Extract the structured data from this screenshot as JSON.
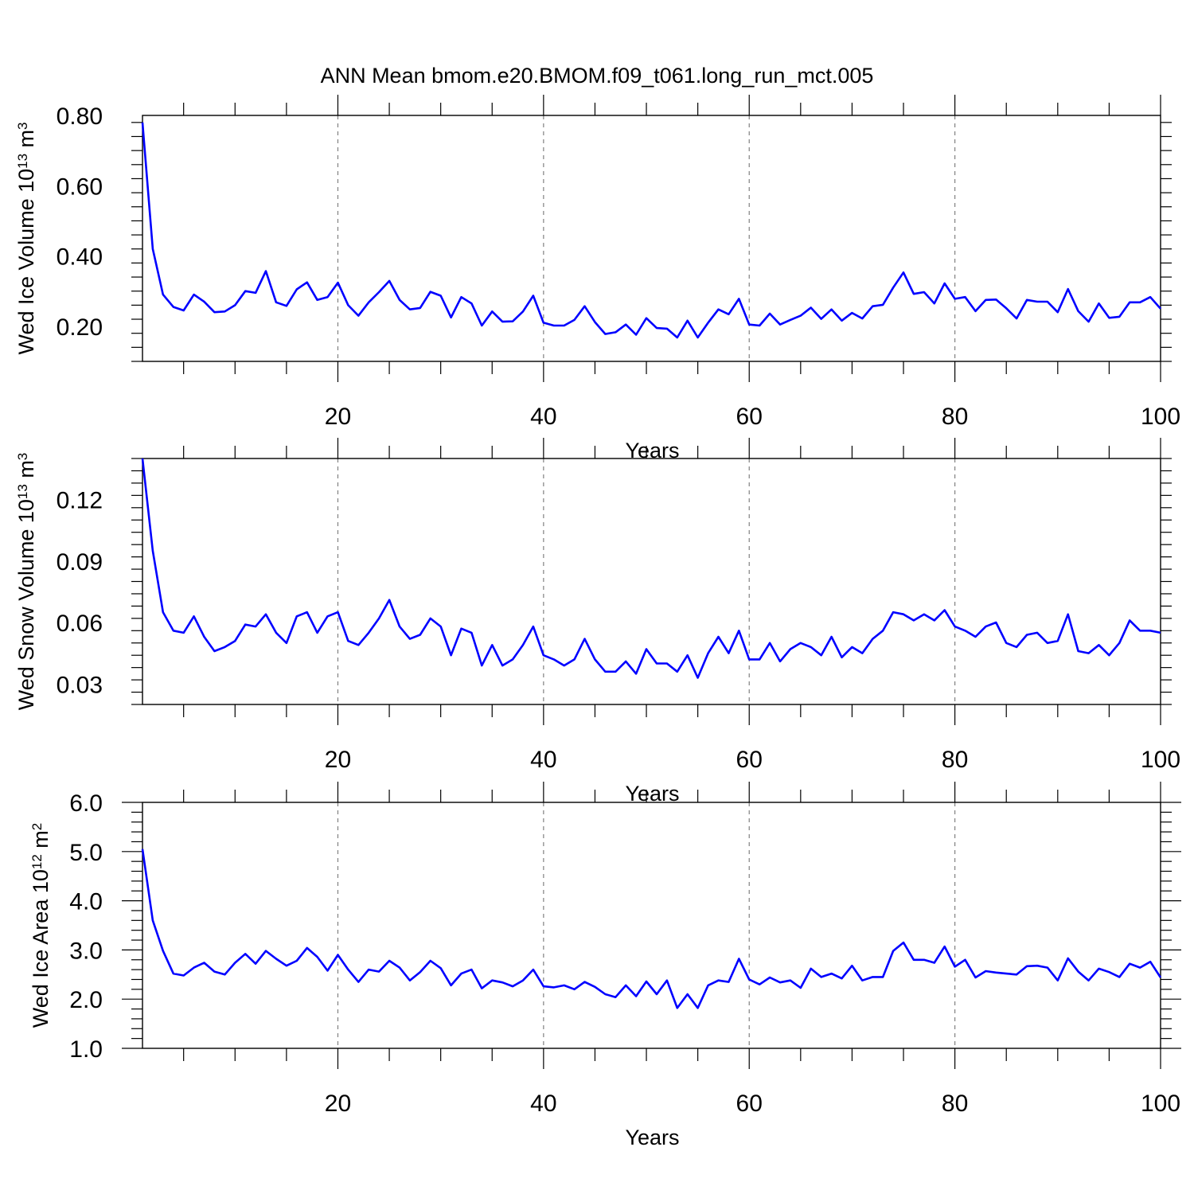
{
  "title": "ANN Mean bmom.e20.BMOM.f09_t061.long_run_mct.005",
  "colors": {
    "line": "#0000ff",
    "axis": "#000000",
    "grid": "#808080"
  },
  "chart_data": [
    {
      "type": "line",
      "ylabel": "Wed Ice Volume 10",
      "ylabel_exp": "13",
      "ylabel_unit": " m",
      "ylabel_unit_exp": "3",
      "xlabel": "Years",
      "xlim": [
        1,
        100
      ],
      "ylim": [
        0.1,
        0.8
      ],
      "yticks": [
        0.2,
        0.4,
        0.6,
        0.8
      ],
      "ytick_labels": [
        "0.20",
        "0.40",
        "0.60",
        "0.80"
      ],
      "xticks": [
        20,
        40,
        60,
        80,
        100
      ],
      "xtick_labels": [
        "20",
        "40",
        "60",
        "80",
        "100"
      ],
      "grid": "vertical dashed at major x ticks",
      "series": [
        {
          "values": [
            0.78,
            0.42,
            0.29,
            0.255,
            0.245,
            0.29,
            0.27,
            0.24,
            0.242,
            0.26,
            0.3,
            0.295,
            0.357,
            0.268,
            0.258,
            0.305,
            0.325,
            0.275,
            0.283,
            0.324,
            0.26,
            0.23,
            0.268,
            0.297,
            0.329,
            0.275,
            0.248,
            0.252,
            0.298,
            0.287,
            0.225,
            0.283,
            0.265,
            0.202,
            0.242,
            0.213,
            0.214,
            0.242,
            0.287,
            0.21,
            0.202,
            0.202,
            0.218,
            0.257,
            0.212,
            0.178,
            0.183,
            0.205,
            0.176,
            0.223,
            0.195,
            0.193,
            0.168,
            0.216,
            0.168,
            0.21,
            0.248,
            0.234,
            0.278,
            0.205,
            0.202,
            0.236,
            0.205,
            0.218,
            0.23,
            0.253,
            0.221,
            0.248,
            0.216,
            0.238,
            0.222,
            0.257,
            0.261,
            0.31,
            0.353,
            0.292,
            0.297,
            0.265,
            0.322,
            0.278,
            0.283,
            0.243,
            0.275,
            0.276,
            0.251,
            0.222,
            0.275,
            0.27,
            0.27,
            0.24,
            0.306,
            0.243,
            0.213,
            0.265,
            0.224,
            0.227,
            0.268,
            0.268,
            0.283,
            0.25
          ]
        }
      ]
    },
    {
      "type": "line",
      "ylabel": "Wed Snow Volume 10",
      "ylabel_exp": "13",
      "ylabel_unit": " m",
      "ylabel_unit_exp": "3",
      "xlabel": "Years",
      "xlim": [
        1,
        100
      ],
      "ylim": [
        0.02,
        0.14
      ],
      "yticks": [
        0.03,
        0.06,
        0.09,
        0.12
      ],
      "ytick_labels": [
        "0.03",
        "0.06",
        "0.09",
        "0.12"
      ],
      "xticks": [
        20,
        40,
        60,
        80,
        100
      ],
      "xtick_labels": [
        "20",
        "40",
        "60",
        "80",
        "100"
      ],
      "grid": "vertical dashed at major x ticks",
      "series": [
        {
          "values": [
            0.14,
            0.095,
            0.065,
            0.056,
            0.055,
            0.063,
            0.053,
            0.046,
            0.048,
            0.051,
            0.059,
            0.058,
            0.064,
            0.055,
            0.05,
            0.063,
            0.065,
            0.055,
            0.063,
            0.065,
            0.051,
            0.049,
            0.055,
            0.062,
            0.071,
            0.058,
            0.052,
            0.054,
            0.062,
            0.058,
            0.044,
            0.057,
            0.055,
            0.039,
            0.049,
            0.039,
            0.042,
            0.049,
            0.058,
            0.044,
            0.042,
            0.039,
            0.042,
            0.052,
            0.042,
            0.036,
            0.036,
            0.041,
            0.035,
            0.047,
            0.04,
            0.04,
            0.036,
            0.044,
            0.033,
            0.045,
            0.053,
            0.045,
            0.056,
            0.042,
            0.042,
            0.05,
            0.041,
            0.047,
            0.05,
            0.048,
            0.044,
            0.053,
            0.043,
            0.048,
            0.045,
            0.052,
            0.056,
            0.065,
            0.064,
            0.061,
            0.064,
            0.061,
            0.066,
            0.058,
            0.056,
            0.053,
            0.058,
            0.06,
            0.05,
            0.048,
            0.054,
            0.055,
            0.05,
            0.051,
            0.064,
            0.046,
            0.045,
            0.049,
            0.044,
            0.05,
            0.061,
            0.056,
            0.056,
            0.055
          ]
        }
      ]
    },
    {
      "type": "line",
      "ylabel": "Wed Ice Area 10",
      "ylabel_exp": "12",
      "ylabel_unit": " m",
      "ylabel_unit_exp": "2",
      "xlabel": "Years",
      "xlim": [
        1,
        100
      ],
      "ylim": [
        1.0,
        6.0
      ],
      "yticks": [
        1.0,
        2.0,
        3.0,
        4.0,
        5.0,
        6.0
      ],
      "ytick_labels": [
        "1.0",
        "2.0",
        "3.0",
        "4.0",
        "5.0",
        "6.0"
      ],
      "xticks": [
        20,
        40,
        60,
        80,
        100
      ],
      "xtick_labels": [
        "20",
        "40",
        "60",
        "80",
        "100"
      ],
      "grid": "vertical dashed at major x ticks",
      "series": [
        {
          "values": [
            5.05,
            3.6,
            2.98,
            2.52,
            2.48,
            2.64,
            2.74,
            2.56,
            2.5,
            2.74,
            2.92,
            2.72,
            2.98,
            2.82,
            2.68,
            2.78,
            3.04,
            2.86,
            2.58,
            2.9,
            2.6,
            2.35,
            2.6,
            2.56,
            2.78,
            2.64,
            2.38,
            2.55,
            2.78,
            2.63,
            2.28,
            2.52,
            2.6,
            2.22,
            2.38,
            2.34,
            2.26,
            2.38,
            2.6,
            2.26,
            2.24,
            2.28,
            2.2,
            2.35,
            2.25,
            2.1,
            2.04,
            2.28,
            2.06,
            2.36,
            2.1,
            2.38,
            1.82,
            2.1,
            1.82,
            2.28,
            2.38,
            2.35,
            2.82,
            2.4,
            2.3,
            2.44,
            2.34,
            2.38,
            2.23,
            2.62,
            2.45,
            2.52,
            2.42,
            2.68,
            2.38,
            2.45,
            2.45,
            2.98,
            3.15,
            2.8,
            2.8,
            2.74,
            3.07,
            2.66,
            2.8,
            2.44,
            2.57,
            2.54,
            2.52,
            2.5,
            2.67,
            2.68,
            2.64,
            2.38,
            2.83,
            2.56,
            2.38,
            2.62,
            2.55,
            2.45,
            2.72,
            2.64,
            2.76,
            2.44
          ]
        }
      ]
    }
  ]
}
